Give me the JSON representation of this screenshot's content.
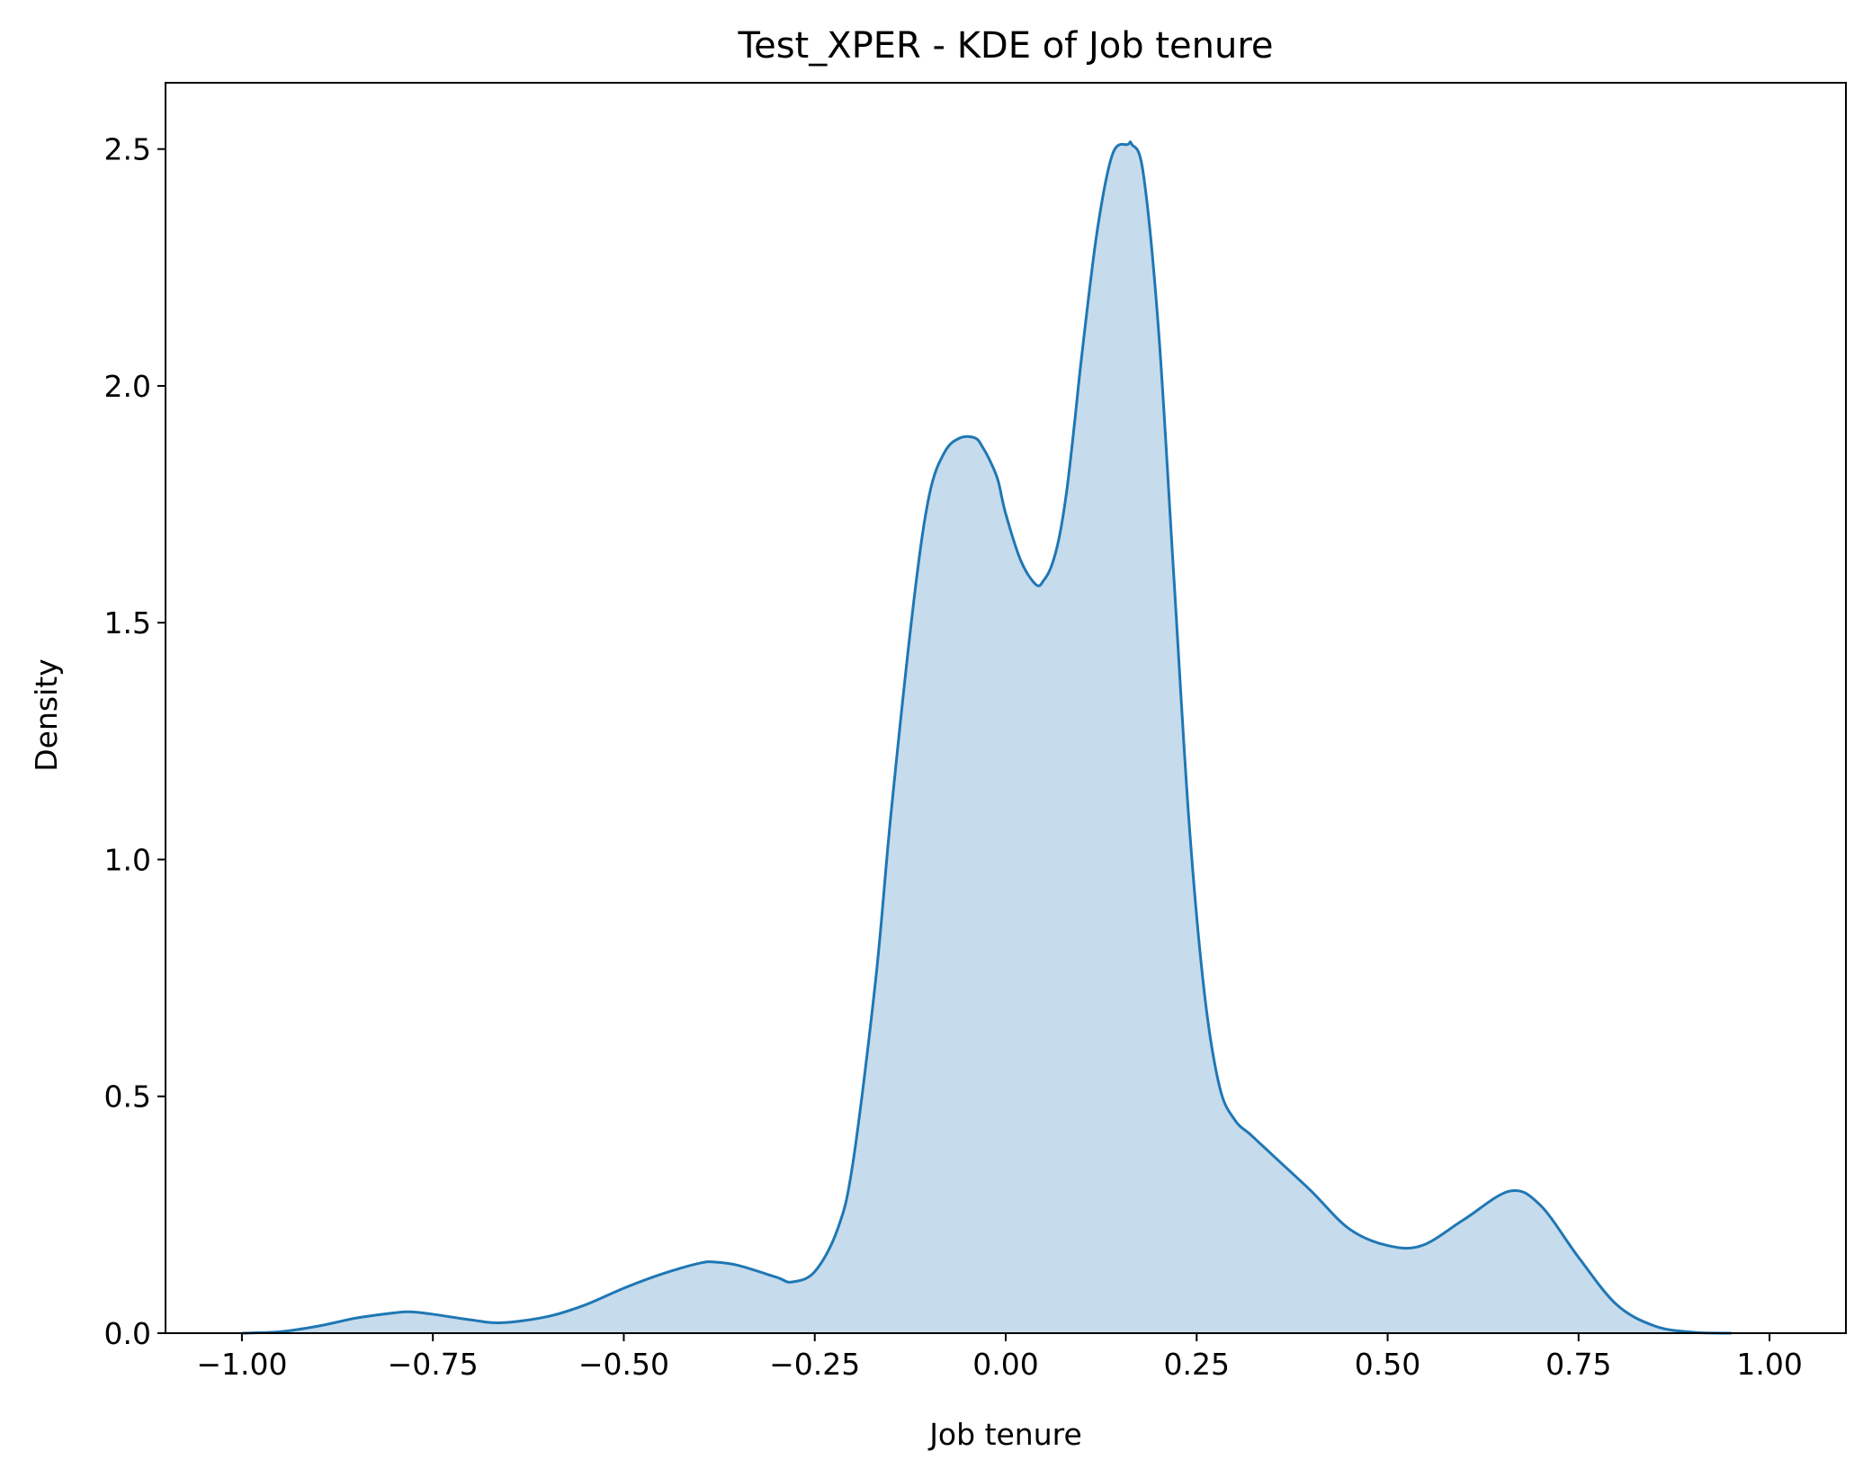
{
  "chart_data": {
    "type": "area",
    "title": "Test_XPER - KDE of Job tenure",
    "xlabel": "Job tenure",
    "ylabel": "Density",
    "xlim": [
      -1.1,
      1.1
    ],
    "ylim": [
      0,
      2.64
    ],
    "xticks": [
      "−1.00",
      "−0.75",
      "−0.50",
      "−0.25",
      "0.00",
      "0.25",
      "0.50",
      "0.75",
      "1.00"
    ],
    "xtick_values": [
      -1.0,
      -0.75,
      -0.5,
      -0.25,
      0.0,
      0.25,
      0.5,
      0.75,
      1.0
    ],
    "yticks": [
      "0.0",
      "0.5",
      "1.0",
      "1.5",
      "2.0",
      "2.5"
    ],
    "ytick_values": [
      0.0,
      0.5,
      1.0,
      1.5,
      2.0,
      2.5
    ],
    "grid": false,
    "colors": {
      "line": "#1f77b4",
      "fill": "#c6dbec"
    },
    "series": [
      {
        "x": [
          -1.0,
          -0.95,
          -0.9,
          -0.85,
          -0.8,
          -0.78,
          -0.75,
          -0.7,
          -0.66,
          -0.6,
          -0.55,
          -0.5,
          -0.45,
          -0.4,
          -0.38,
          -0.35,
          -0.3,
          -0.28,
          -0.25,
          -0.22,
          -0.2,
          -0.17,
          -0.15,
          -0.12,
          -0.1,
          -0.08,
          -0.06,
          -0.04,
          -0.03,
          -0.02,
          -0.01,
          0.0,
          0.02,
          0.04,
          0.05,
          0.06,
          0.07,
          0.08,
          0.09,
          0.1,
          0.12,
          0.14,
          0.16,
          0.165,
          0.18,
          0.2,
          0.22,
          0.24,
          0.26,
          0.28,
          0.3,
          0.32,
          0.34,
          0.36,
          0.4,
          0.45,
          0.5,
          0.545,
          0.6,
          0.66,
          0.7,
          0.75,
          0.8,
          0.85,
          0.9,
          0.95
        ],
        "y": [
          0.0,
          0.003,
          0.015,
          0.032,
          0.043,
          0.045,
          0.04,
          0.028,
          0.022,
          0.035,
          0.06,
          0.095,
          0.125,
          0.148,
          0.15,
          0.143,
          0.118,
          0.108,
          0.13,
          0.22,
          0.36,
          0.75,
          1.1,
          1.55,
          1.77,
          1.86,
          1.89,
          1.89,
          1.87,
          1.84,
          1.8,
          1.73,
          1.63,
          1.58,
          1.59,
          1.62,
          1.68,
          1.78,
          1.92,
          2.07,
          2.33,
          2.49,
          2.51,
          2.51,
          2.45,
          2.12,
          1.6,
          1.08,
          0.72,
          0.52,
          0.45,
          0.42,
          0.39,
          0.36,
          0.3,
          0.22,
          0.185,
          0.185,
          0.24,
          0.3,
          0.27,
          0.16,
          0.06,
          0.015,
          0.002,
          0.0
        ]
      }
    ]
  }
}
